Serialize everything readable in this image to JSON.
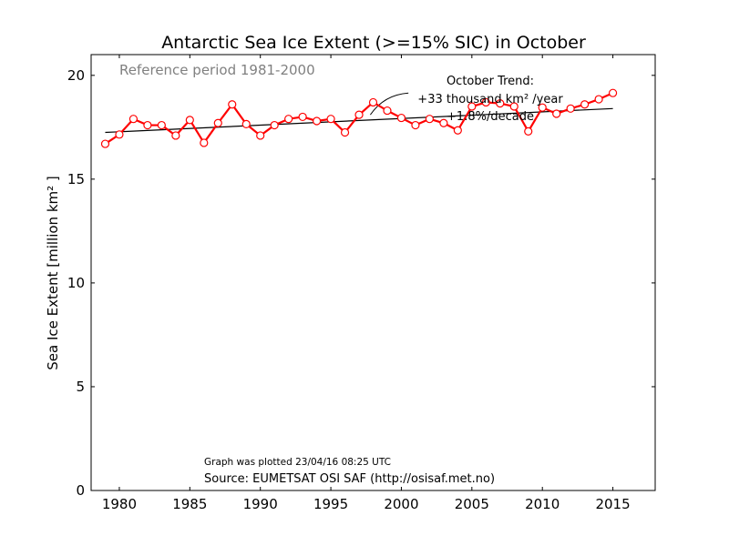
{
  "chart_data": {
    "type": "line",
    "title": "Antarctic Sea Ice Extent (>=15% SIC) in October",
    "ylabel": "Sea Ice Extent [million km² ]",
    "xlim": [
      1978,
      2018
    ],
    "ylim": [
      0,
      21
    ],
    "x_ticks": [
      1980,
      1985,
      1990,
      1995,
      2000,
      2005,
      2010,
      2015
    ],
    "y_ticks": [
      0,
      5,
      10,
      15,
      20
    ],
    "grid": false,
    "reference_text": "Reference period 1981-2000",
    "series": [
      {
        "color": "#ff0000",
        "marker": "open-circle",
        "x": [
          1979,
          1980,
          1981,
          1982,
          1983,
          1984,
          1985,
          1986,
          1987,
          1988,
          1989,
          1990,
          1991,
          1992,
          1993,
          1994,
          1995,
          1996,
          1997,
          1998,
          1999,
          2000,
          2001,
          2002,
          2003,
          2004,
          2005,
          2006,
          2007,
          2008,
          2009,
          2010,
          2011,
          2012,
          2013,
          2014,
          2015
        ],
        "values": [
          16.7,
          17.15,
          17.9,
          17.6,
          17.6,
          17.1,
          17.85,
          16.75,
          17.7,
          18.6,
          17.65,
          17.1,
          17.6,
          17.9,
          18.0,
          17.8,
          17.9,
          17.25,
          18.1,
          18.7,
          18.3,
          17.95,
          17.6,
          17.9,
          17.7,
          17.35,
          18.5,
          18.7,
          18.65,
          18.5,
          17.3,
          18.45,
          18.15,
          18.4,
          18.6,
          18.85,
          19.15
        ]
      }
    ],
    "trend_line": {
      "color": "#000000",
      "x": [
        1979,
        2015
      ],
      "y": [
        17.25,
        18.4
      ]
    },
    "annotation": {
      "line1": "October Trend:",
      "line2": "+33 thousand km² /year",
      "line3": "+1.8%/decade",
      "arrow_from": [
        2000.5,
        19.15
      ],
      "arrow_to": [
        1997.8,
        18.1
      ]
    },
    "plotted_text": "Graph was plotted 23/04/16 08:25 UTC",
    "source_text": "Source: EUMETSAT OSI SAF (http://osisaf.met.no)"
  }
}
